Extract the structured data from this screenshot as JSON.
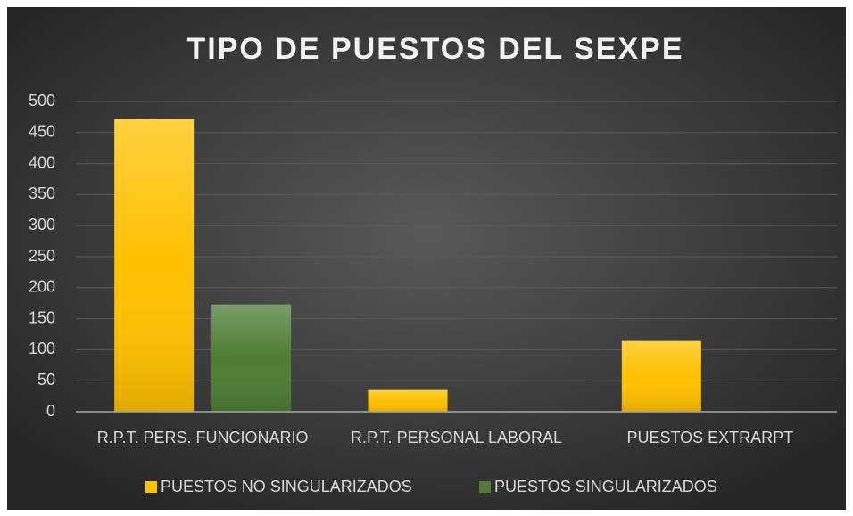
{
  "chart_data": {
    "type": "bar",
    "title": "TIPO DE PUESTOS DEL SEXPE",
    "categories": [
      "R.P.T.  PERS. FUNCIONARIO",
      "R.P.T. PERSONAL LABORAL",
      "PUESTOS EXTRARPT"
    ],
    "series": [
      {
        "name": "PUESTOS NO SINGULARIZADOS",
        "color": "#ffc000",
        "values": [
          472,
          35,
          114
        ]
      },
      {
        "name": "PUESTOS SINGULARIZADOS",
        "color": "#4e7c34",
        "values": [
          173,
          null,
          null
        ]
      }
    ],
    "ylim": [
      0,
      500
    ],
    "yticks": [
      0,
      50,
      100,
      150,
      200,
      250,
      300,
      350,
      400,
      450,
      500
    ],
    "grid": true,
    "legend": "bottom"
  }
}
